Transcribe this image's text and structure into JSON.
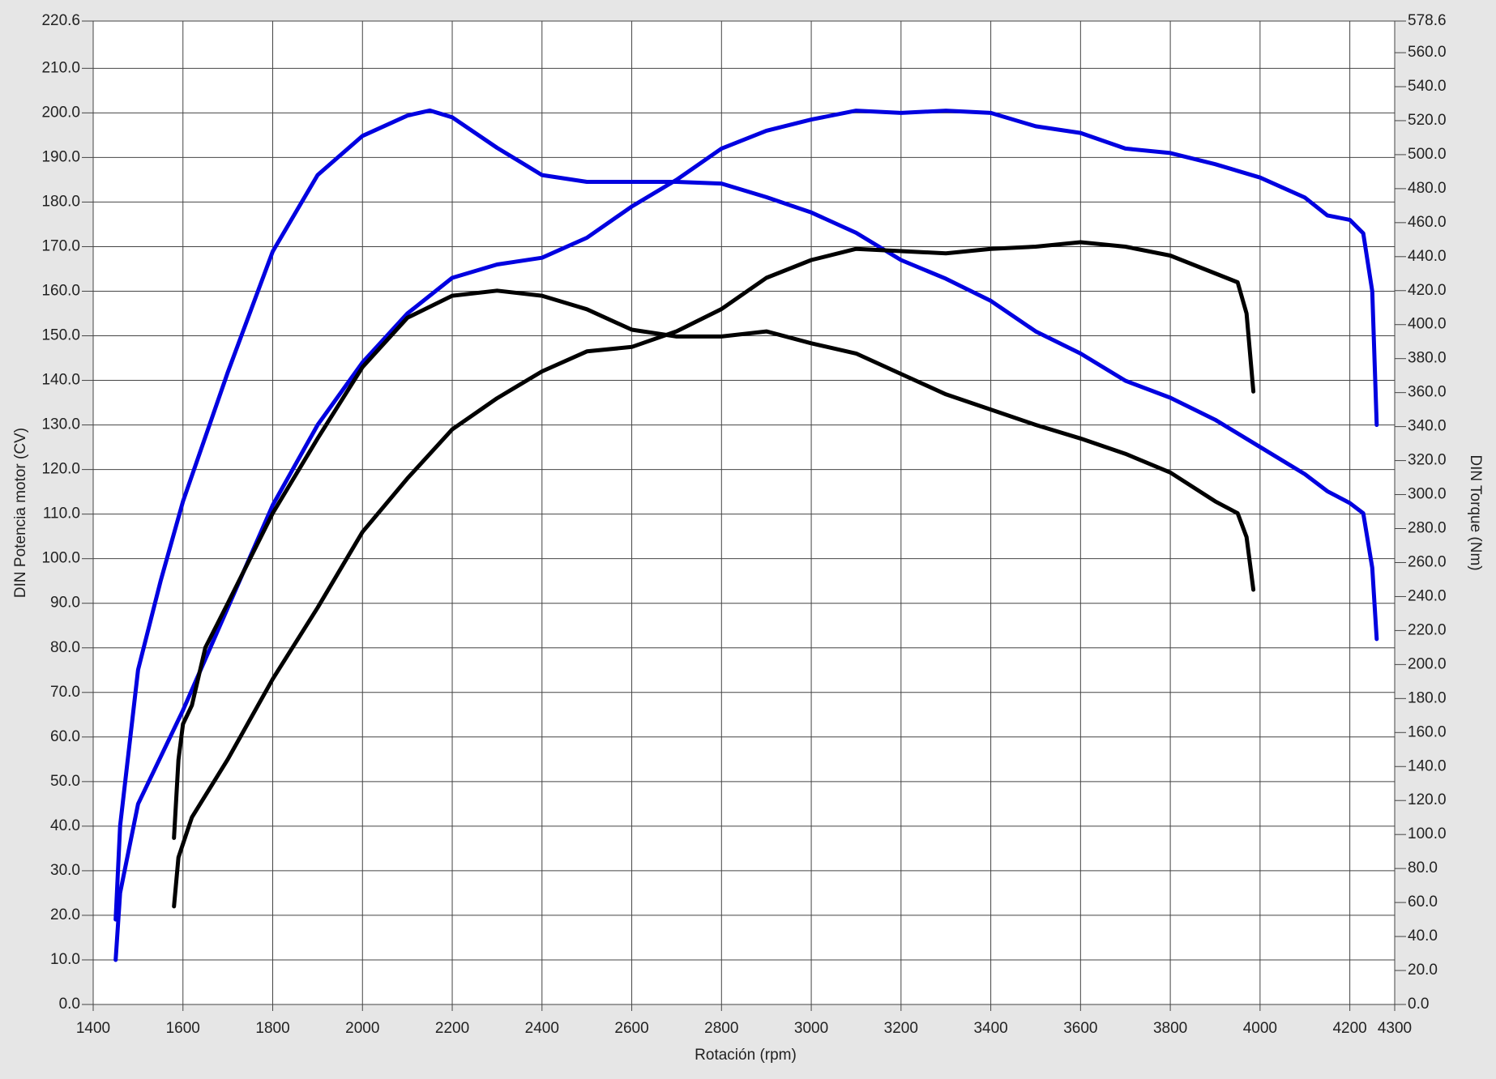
{
  "chart_data": {
    "type": "line",
    "xlabel": "Rotación (rpm)",
    "ylabel": "DIN Potencia motor (CV)",
    "y2label": "DIN Torque (Nm)",
    "xlim": [
      1400,
      4300
    ],
    "xticks": [
      1400,
      1600,
      1800,
      2000,
      2200,
      2400,
      2600,
      2800,
      3000,
      3200,
      3400,
      3600,
      3800,
      4000,
      4200,
      4300
    ],
    "ylim": [
      0,
      220.6
    ],
    "yticks": [
      {
        "value": 0,
        "label": "0.0"
      },
      {
        "value": 10,
        "label": "10.0"
      },
      {
        "value": 20,
        "label": "20.0"
      },
      {
        "value": 30,
        "label": "30.0"
      },
      {
        "value": 40,
        "label": "40.0"
      },
      {
        "value": 50,
        "label": "50.0"
      },
      {
        "value": 60,
        "label": "60.0"
      },
      {
        "value": 70,
        "label": "70.0"
      },
      {
        "value": 80,
        "label": "80.0"
      },
      {
        "value": 90,
        "label": "90.0"
      },
      {
        "value": 100,
        "label": "100.0"
      },
      {
        "value": 110,
        "label": "110.0"
      },
      {
        "value": 120,
        "label": "120.0"
      },
      {
        "value": 130,
        "label": "130.0"
      },
      {
        "value": 140,
        "label": "140.0"
      },
      {
        "value": 150,
        "label": "150.0"
      },
      {
        "value": 160,
        "label": "160.0"
      },
      {
        "value": 170,
        "label": "170.0"
      },
      {
        "value": 180,
        "label": "180.0"
      },
      {
        "value": 190,
        "label": "190.0"
      },
      {
        "value": 200,
        "label": "200.0"
      },
      {
        "value": 210,
        "label": "210.0"
      },
      220.6
    ],
    "y2lim": [
      0,
      578.6
    ],
    "y2ticks": [
      {
        "value": 0,
        "label": "0.0"
      },
      {
        "value": 20,
        "label": "20.0"
      },
      {
        "value": 40,
        "label": "40.0"
      },
      {
        "value": 60,
        "label": "60.0"
      },
      {
        "value": 80,
        "label": "80.0"
      },
      {
        "value": 100,
        "label": "100.0"
      },
      {
        "value": 120,
        "label": "120.0"
      },
      {
        "value": 140,
        "label": "140.0"
      },
      {
        "value": 160,
        "label": "160.0"
      },
      {
        "value": 180,
        "label": "180.0"
      },
      {
        "value": 200,
        "label": "200.0"
      },
      {
        "value": 220,
        "label": "220.0"
      },
      {
        "value": 240,
        "label": "240.0"
      },
      {
        "value": 260,
        "label": "260.0"
      },
      {
        "value": 280,
        "label": "280.0"
      },
      {
        "value": 300,
        "label": "300.0"
      },
      {
        "value": 320,
        "label": "320.0"
      },
      {
        "value": 340,
        "label": "340.0"
      },
      {
        "value": 360,
        "label": "360.0"
      },
      {
        "value": 380,
        "label": "380.0"
      },
      {
        "value": 400,
        "label": "400.0"
      },
      {
        "value": 420,
        "label": "420.0"
      },
      {
        "value": 440,
        "label": "440.0"
      },
      {
        "value": 460,
        "label": "460.0"
      },
      {
        "value": 480,
        "label": "480.0"
      },
      {
        "value": 500,
        "label": "500.0"
      },
      {
        "value": 520,
        "label": "520.0"
      },
      {
        "value": 540,
        "label": "540.0"
      },
      {
        "value": 560,
        "label": "560.0"
      },
      578.6
    ],
    "grid": true,
    "series": [
      {
        "color": "#0000e0",
        "axis": "y2",
        "x": [
          1450,
          1460,
          1500,
          1550,
          1600,
          1700,
          1800,
          1900,
          2000,
          2100,
          2150,
          2200,
          2300,
          2400,
          2500,
          2600,
          2700,
          2800,
          2900,
          3000,
          3100,
          3200,
          3300,
          3400,
          3500,
          3600,
          3700,
          3800,
          3900,
          4000,
          4100,
          4150,
          4200,
          4230,
          4250,
          4260
        ],
        "values": [
          50,
          105,
          197,
          249,
          296,
          372,
          443,
          488,
          511,
          523,
          526,
          522,
          504,
          488,
          484,
          484,
          484,
          483,
          475,
          466,
          454,
          438,
          427,
          414,
          396,
          383,
          367,
          357,
          344,
          328,
          312,
          302,
          295,
          289,
          257,
          215
        ]
      },
      {
        "color": "#0000e0",
        "x": [
          1450,
          1460,
          1500,
          1600,
          1700,
          1800,
          1900,
          2000,
          2100,
          2200,
          2300,
          2400,
          2500,
          2600,
          2700,
          2800,
          2900,
          3000,
          3100,
          3200,
          3300,
          3400,
          3500,
          3600,
          3700,
          3800,
          3900,
          4000,
          4100,
          4150,
          4200,
          4230,
          4250,
          4260
        ],
        "values": [
          10,
          25,
          45,
          66,
          89,
          112,
          130,
          144,
          155,
          163,
          166,
          167.5,
          172,
          179,
          185,
          192,
          196,
          198.5,
          200.5,
          200,
          200.5,
          200,
          197,
          195.5,
          192,
          191,
          188.5,
          185.5,
          181,
          177,
          176,
          173,
          160,
          130
        ]
      },
      {
        "color": "#000000",
        "axis": "y2",
        "x": [
          1580,
          1590,
          1600,
          1620,
          1650,
          1700,
          1800,
          1900,
          2000,
          2100,
          2200,
          2300,
          2400,
          2500,
          2600,
          2700,
          2800,
          2900,
          3000,
          3100,
          3200,
          3300,
          3400,
          3500,
          3600,
          3700,
          3800,
          3900,
          3950,
          3970,
          3985
        ],
        "values": [
          98,
          144,
          165,
          176,
          210,
          236,
          289,
          333,
          375,
          404,
          417,
          420,
          417,
          409,
          397,
          393,
          393,
          396,
          389,
          383,
          371,
          359,
          350,
          341,
          333,
          324,
          313,
          296,
          289,
          275,
          244
        ]
      },
      {
        "color": "#000000",
        "x": [
          1580,
          1590,
          1620,
          1700,
          1800,
          1900,
          2000,
          2100,
          2200,
          2300,
          2400,
          2500,
          2600,
          2700,
          2800,
          2900,
          3000,
          3100,
          3200,
          3300,
          3400,
          3500,
          3600,
          3700,
          3800,
          3900,
          3950,
          3970,
          3985
        ],
        "values": [
          22,
          33,
          42,
          55,
          73,
          89,
          106,
          118,
          129,
          136,
          142,
          146.5,
          147.5,
          151,
          156,
          163,
          167,
          169.5,
          169,
          168.5,
          169.5,
          170,
          171,
          170,
          168,
          164,
          162,
          155,
          137.5
        ]
      }
    ]
  }
}
